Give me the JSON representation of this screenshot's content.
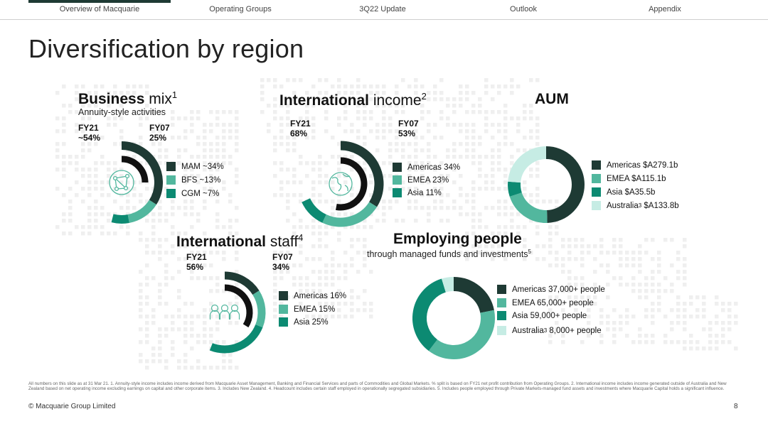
{
  "nav": [
    "Overview of Macquarie",
    "Operating Groups",
    "3Q22 Update",
    "Outlook",
    "Appendix"
  ],
  "page_title": "Diversification by region",
  "colors": {
    "dark": "#1e3a34",
    "mid": "#52b79e",
    "teal": "#0c8a72",
    "light": "#c6ece4",
    "black": "#111111",
    "track": "#e6e6e6"
  },
  "business_mix": {
    "title_bold": "Business",
    "title_rest": "mix",
    "title_sup": "1",
    "subtitle": "Annuity-style activities",
    "fy21_label": "FY21",
    "fy21_value": "~54%",
    "fy07_label": "FY07",
    "fy07_value": "25%",
    "legend": [
      {
        "label": "MAM ~34%",
        "color": "#1e3a34"
      },
      {
        "label": "BFS ~13%",
        "color": "#52b79e"
      },
      {
        "label": "CGM ~7%",
        "color": "#0c8a72"
      }
    ],
    "icon": "network-globe-icon"
  },
  "international_income": {
    "title_bold": "International",
    "title_rest": "income",
    "title_sup": "2",
    "fy21_label": "FY21",
    "fy21_value": "68%",
    "fy07_label": "FY07",
    "fy07_value": "53%",
    "legend": [
      {
        "label": "Americas 34%",
        "color": "#1e3a34"
      },
      {
        "label": "EMEA 23%",
        "color": "#52b79e"
      },
      {
        "label": "Asia 11%",
        "color": "#0c8a72"
      }
    ],
    "icon": "globe-icon"
  },
  "aum": {
    "title": "AUM",
    "legend": [
      {
        "label": "Americas $A279.1b",
        "sup": "",
        "color": "#1e3a34"
      },
      {
        "label": "EMEA $A115.1b",
        "sup": "",
        "color": "#52b79e"
      },
      {
        "label": "Asia $A35.5b",
        "sup": "",
        "color": "#0c8a72"
      },
      {
        "label": "Australia",
        "sup": "3",
        "label_after": " $A133.8b",
        "color": "#c6ece4"
      }
    ]
  },
  "international_staff": {
    "title_bold": "International",
    "title_rest": "staff",
    "title_sup": "4",
    "fy21_label": "FY21",
    "fy21_value": "56%",
    "fy07_label": "FY07",
    "fy07_value": "34%",
    "legend": [
      {
        "label": "Americas 16%",
        "color": "#1e3a34"
      },
      {
        "label": "EMEA 15%",
        "color": "#52b79e"
      },
      {
        "label": "Asia 25%",
        "color": "#0c8a72"
      }
    ],
    "icon": "people-icon"
  },
  "employing_people": {
    "title": "Employing people",
    "subtitle": "through managed funds and investments",
    "subtitle_sup": "5",
    "legend": [
      {
        "label": "Americas 37,000+ people",
        "sup": "",
        "color": "#1e3a34"
      },
      {
        "label": "EMEA 65,000+ people",
        "sup": "",
        "color": "#52b79e"
      },
      {
        "label": "Asia 59,000+ people",
        "sup": "",
        "color": "#0c8a72"
      },
      {
        "label": "Australia",
        "sup": "3",
        "label_after": " 8,000+ people",
        "color": "#c6ece4"
      }
    ]
  },
  "chart_data": [
    {
      "type": "radial-bar",
      "title": "Business mix",
      "note": "Annuity-style activities",
      "series": [
        {
          "name": "FY07",
          "value": 25,
          "color": "#111111"
        },
        {
          "name": "MAM",
          "value": 34,
          "color": "#1e3a34"
        },
        {
          "name": "BFS",
          "value": 13,
          "color": "#52b79e"
        },
        {
          "name": "CGM",
          "value": 7,
          "color": "#0c8a72"
        }
      ],
      "total": 54
    },
    {
      "type": "radial-bar",
      "title": "International income",
      "series": [
        {
          "name": "FY07",
          "value": 53,
          "color": "#111111"
        },
        {
          "name": "Americas",
          "value": 34,
          "color": "#1e3a34"
        },
        {
          "name": "EMEA",
          "value": 23,
          "color": "#52b79e"
        },
        {
          "name": "Asia",
          "value": 11,
          "color": "#0c8a72"
        }
      ],
      "total": 68
    },
    {
      "type": "pie",
      "title": "AUM",
      "categories": [
        "Americas",
        "EMEA",
        "Asia",
        "Australia"
      ],
      "values": [
        279.1,
        115.1,
        35.5,
        133.8
      ],
      "unit": "$A b"
    },
    {
      "type": "radial-bar",
      "title": "International staff",
      "series": [
        {
          "name": "FY07",
          "value": 34,
          "color": "#111111"
        },
        {
          "name": "Americas",
          "value": 16,
          "color": "#1e3a34"
        },
        {
          "name": "EMEA",
          "value": 15,
          "color": "#52b79e"
        },
        {
          "name": "Asia",
          "value": 25,
          "color": "#0c8a72"
        }
      ],
      "total": 56
    },
    {
      "type": "pie",
      "title": "Employing people",
      "categories": [
        "Americas",
        "EMEA",
        "Asia",
        "Australia"
      ],
      "values": [
        37000,
        65000,
        59000,
        8000
      ],
      "unit": "people"
    }
  ],
  "footnote": "All numbers on this slide as at 31 Mar 21. 1. Annuity-style income includes income derived from Macquarie Asset Management, Banking and Financial Services and parts of Commodities and Global Markets. % split is based on FY21 net profit contribution from Operating Groups. 2. International income includes income generated outside of Australia and New Zealand based on net operating income excluding earnings on capital and other corporate items. 3. Includes New Zealand. 4. Headcount includes certain staff employed in operationally segregated subsidiaries. 5. Includes people employed through Private Markets-managed fund assets and investments where Macquarie Capital holds a significant influence.",
  "copyright": "© Macquarie Group Limited",
  "page_number": "8"
}
